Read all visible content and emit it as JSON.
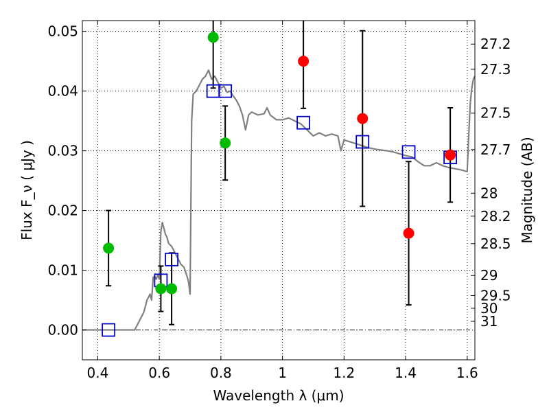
{
  "chart_data": {
    "type": "scatter",
    "title": "",
    "xlabel": "Wavelength  λ (μm)",
    "ylabel": "Flux  F_ν  ( μJy )",
    "ylabel_right": "Magnitude (AB)",
    "xlim": [
      0.35,
      1.625
    ],
    "ylim": [
      -0.005,
      0.0518
    ],
    "grid": true,
    "legend": "none",
    "x_ticks": [
      0.4,
      0.6,
      0.8,
      1.0,
      1.2,
      1.4,
      1.6
    ],
    "x_tick_labels": [
      "0.4",
      "0.6",
      "0.8",
      "1",
      "1.2",
      "1.4",
      "1.6"
    ],
    "y_ticks": [
      0.0,
      0.01,
      0.02,
      0.03,
      0.04,
      0.05
    ],
    "y_tick_labels": [
      "0.00",
      "0.01",
      "0.02",
      "0.03",
      "0.04",
      "0.05"
    ],
    "right_ticks": [
      {
        "mag": 27.2,
        "label": "27.2"
      },
      {
        "mag": 27.3,
        "label": "27.3"
      },
      {
        "mag": 27.5,
        "label": "27.5"
      },
      {
        "mag": 27.7,
        "label": "27.7"
      },
      {
        "mag": 28.0,
        "label": "28"
      },
      {
        "mag": 28.2,
        "label": "28.2"
      },
      {
        "mag": 28.5,
        "label": "28.5"
      },
      {
        "mag": 29.0,
        "label": "29"
      },
      {
        "mag": 29.5,
        "label": "29.5"
      },
      {
        "mag": 30.0,
        "label": "30"
      },
      {
        "mag": 31.0,
        "label": "31"
      }
    ],
    "colors": {
      "sed": "#808080",
      "green_points": "#00bb00",
      "red_points": "#ff0000",
      "model_squares": "#0000cc",
      "errorbars": "#000000",
      "zero_line": "#000000"
    },
    "series": [
      {
        "kind": "line",
        "color_key": "sed",
        "points": [
          [
            0.35,
            0.0
          ],
          [
            0.52,
            0.0
          ],
          [
            0.53,
            0.001
          ],
          [
            0.55,
            0.003
          ],
          [
            0.56,
            0.005
          ],
          [
            0.57,
            0.006
          ],
          [
            0.575,
            0.005
          ],
          [
            0.58,
            0.0088
          ],
          [
            0.585,
            0.009
          ],
          [
            0.59,
            0.0085
          ],
          [
            0.595,
            0.0092
          ],
          [
            0.6,
            0.0085
          ],
          [
            0.605,
            0.0165
          ],
          [
            0.61,
            0.018
          ],
          [
            0.615,
            0.017
          ],
          [
            0.62,
            0.016
          ],
          [
            0.625,
            0.0155
          ],
          [
            0.63,
            0.0145
          ],
          [
            0.64,
            0.014
          ],
          [
            0.65,
            0.013
          ],
          [
            0.66,
            0.012
          ],
          [
            0.67,
            0.011
          ],
          [
            0.68,
            0.0105
          ],
          [
            0.69,
            0.009
          ],
          [
            0.695,
            0.008
          ],
          [
            0.7,
            0.006
          ],
          [
            0.705,
            0.035
          ],
          [
            0.71,
            0.0395
          ],
          [
            0.72,
            0.04
          ],
          [
            0.73,
            0.041
          ],
          [
            0.74,
            0.042
          ],
          [
            0.75,
            0.0425
          ],
          [
            0.76,
            0.0435
          ],
          [
            0.77,
            0.042
          ],
          [
            0.78,
            0.0425
          ],
          [
            0.79,
            0.0415
          ],
          [
            0.8,
            0.0405
          ],
          [
            0.81,
            0.0408
          ],
          [
            0.82,
            0.0398
          ],
          [
            0.83,
            0.04
          ],
          [
            0.84,
            0.0392
          ],
          [
            0.85,
            0.0385
          ],
          [
            0.86,
            0.0375
          ],
          [
            0.87,
            0.036
          ],
          [
            0.88,
            0.0335
          ],
          [
            0.89,
            0.036
          ],
          [
            0.9,
            0.0365
          ],
          [
            0.92,
            0.036
          ],
          [
            0.94,
            0.0362
          ],
          [
            0.95,
            0.0372
          ],
          [
            0.96,
            0.036
          ],
          [
            0.98,
            0.0352
          ],
          [
            1.0,
            0.0352
          ],
          [
            1.02,
            0.0355
          ],
          [
            1.04,
            0.035
          ],
          [
            1.06,
            0.0345
          ],
          [
            1.08,
            0.0335
          ],
          [
            1.1,
            0.0325
          ],
          [
            1.12,
            0.033
          ],
          [
            1.14,
            0.0325
          ],
          [
            1.16,
            0.0328
          ],
          [
            1.18,
            0.0325
          ],
          [
            1.19,
            0.03
          ],
          [
            1.2,
            0.0318
          ],
          [
            1.22,
            0.0315
          ],
          [
            1.25,
            0.031
          ],
          [
            1.28,
            0.0305
          ],
          [
            1.31,
            0.0302
          ],
          [
            1.34,
            0.03
          ],
          [
            1.36,
            0.0298
          ],
          [
            1.38,
            0.0295
          ],
          [
            1.4,
            0.0292
          ],
          [
            1.42,
            0.029
          ],
          [
            1.44,
            0.0282
          ],
          [
            1.46,
            0.0275
          ],
          [
            1.48,
            0.0275
          ],
          [
            1.5,
            0.028
          ],
          [
            1.52,
            0.0275
          ],
          [
            1.54,
            0.0272
          ],
          [
            1.56,
            0.027
          ],
          [
            1.58,
            0.0268
          ],
          [
            1.6,
            0.0265
          ],
          [
            1.605,
            0.0325
          ],
          [
            1.61,
            0.038
          ],
          [
            1.615,
            0.0405
          ],
          [
            1.62,
            0.042
          ],
          [
            1.625,
            0.0425
          ]
        ]
      },
      {
        "kind": "points",
        "marker": "circle",
        "color_key": "green_points",
        "points": [
          {
            "x": 0.435,
            "y": 0.0137,
            "err_low": 0.0063,
            "err_high": 0.0063
          },
          {
            "x": 0.605,
            "y": 0.0069,
            "err_low": 0.0038,
            "err_high": 0.0038
          },
          {
            "x": 0.64,
            "y": 0.0069,
            "err_low": 0.006,
            "err_high": 0.006
          },
          {
            "x": 0.775,
            "y": 0.049,
            "err_low": 0.0085,
            "err_high": 0.0085
          },
          {
            "x": 0.814,
            "y": 0.0313,
            "err_low": 0.0062,
            "err_high": 0.0062
          }
        ]
      },
      {
        "kind": "points",
        "marker": "circle",
        "color_key": "red_points",
        "points": [
          {
            "x": 1.068,
            "y": 0.045,
            "err_low": 0.0079,
            "err_high": 0.0079
          },
          {
            "x": 1.26,
            "y": 0.0354,
            "err_low": 0.0147,
            "err_high": 0.0147
          },
          {
            "x": 1.41,
            "y": 0.0162,
            "err_low": 0.012,
            "err_high": 0.012
          },
          {
            "x": 1.545,
            "y": 0.0293,
            "err_low": 0.0079,
            "err_high": 0.0079
          }
        ]
      },
      {
        "kind": "points",
        "marker": "square-open",
        "color_key": "model_squares",
        "points": [
          {
            "x": 0.435,
            "y": 0.0
          },
          {
            "x": 0.605,
            "y": 0.0083
          },
          {
            "x": 0.64,
            "y": 0.0118
          },
          {
            "x": 0.775,
            "y": 0.04
          },
          {
            "x": 0.814,
            "y": 0.04
          },
          {
            "x": 1.068,
            "y": 0.0347
          },
          {
            "x": 1.26,
            "y": 0.0315
          },
          {
            "x": 1.41,
            "y": 0.0298
          },
          {
            "x": 1.545,
            "y": 0.0289
          }
        ]
      }
    ]
  }
}
